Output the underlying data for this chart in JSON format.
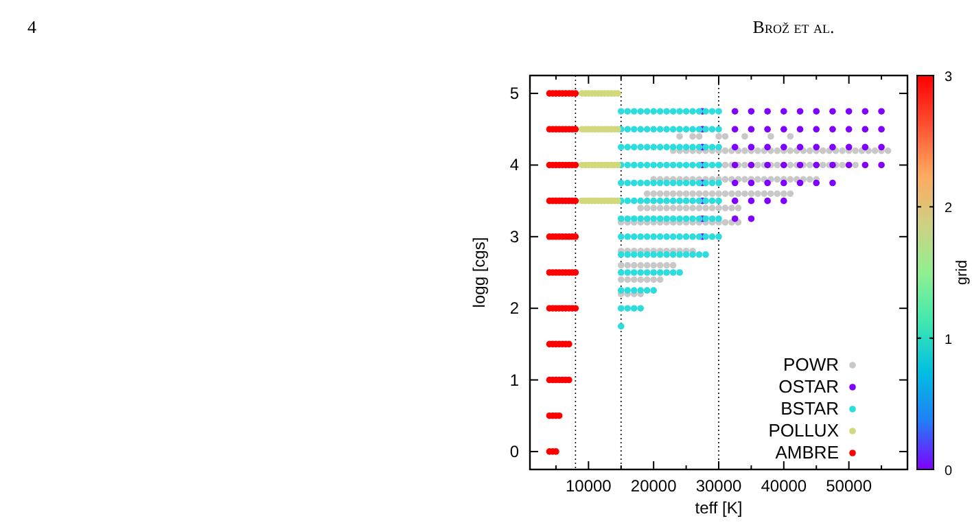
{
  "chart_data": {
    "type": "scatter",
    "xlabel": "teff [K]",
    "ylabel": "logg [cgs]",
    "clabel": "grid",
    "clim": [
      0,
      3
    ],
    "cticks": [
      0,
      1,
      2,
      3
    ],
    "annotations": [
      "4",
      "Brož et al."
    ],
    "xlim": [
      1000,
      59000
    ],
    "ylim": [
      -0.25,
      5.25
    ],
    "xticks": [
      {
        "value": 5000,
        "label": null
      },
      10000,
      {
        "value": 15000,
        "label": null
      },
      20000,
      {
        "value": 25000,
        "label": null
      },
      30000,
      {
        "value": 35000,
        "label": null
      },
      40000,
      {
        "value": 45000,
        "label": null
      },
      50000,
      {
        "value": 55000,
        "label": null
      }
    ],
    "yticks": [
      0,
      1,
      2,
      3,
      4,
      5
    ],
    "grid": false,
    "legend": "bottom right",
    "marker": "circle",
    "ref_lines": [
      {
        "axis": "x",
        "value": 8000,
        "line_style": "dotted",
        "color": "#000000"
      },
      {
        "axis": "x",
        "value": 15000,
        "line_style": "dotted",
        "color": "#000000"
      },
      {
        "axis": "x",
        "value": 30000,
        "line_style": "dotted",
        "color": "#000000"
      }
    ],
    "series": [
      {
        "name": "POWR",
        "color": "#c8c8c8",
        "x": [
          24000,
          26000,
          27000,
          30000,
          31000,
          34000,
          38000,
          41000,
          23000,
          24000,
          25000,
          26000,
          27000,
          28000,
          29000,
          30000,
          31000,
          32000,
          33000,
          34000,
          35000,
          36000,
          37000,
          38000,
          39000,
          40000,
          41000,
          42000,
          43000,
          44000,
          45000,
          46000,
          47000,
          48000,
          49000,
          50000,
          51000,
          52000,
          53000,
          54000,
          55000,
          56000,
          30000,
          31000,
          32000,
          33000,
          34000,
          35000,
          36000,
          37000,
          38000,
          39000,
          40000,
          41000,
          42000,
          43000,
          44000,
          45000,
          46000,
          47000,
          48000,
          49000,
          50000,
          51000,
          20000,
          21000,
          22000,
          23000,
          24000,
          25000,
          26000,
          27000,
          28000,
          29000,
          30000,
          31000,
          32000,
          33000,
          34000,
          35000,
          36000,
          37000,
          38000,
          39000,
          40000,
          41000,
          42000,
          43000,
          44000,
          45000,
          19000,
          20000,
          21000,
          22000,
          23000,
          24000,
          25000,
          26000,
          27000,
          28000,
          29000,
          30000,
          31000,
          32000,
          33000,
          34000,
          35000,
          36000,
          37000,
          38000,
          39000,
          40000,
          41000,
          18000,
          19000,
          20000,
          21000,
          22000,
          23000,
          24000,
          25000,
          26000,
          27000,
          28000,
          29000,
          30000,
          31000,
          32000,
          33000,
          15000,
          16000,
          17000,
          18000,
          19000,
          20000,
          21000,
          22000,
          23000,
          24000,
          25000,
          26000,
          27000,
          28000,
          29000,
          30000,
          31000,
          32000,
          33000,
          15000,
          16000,
          17000,
          18000,
          19000,
          20000,
          21000,
          22000,
          23000,
          24000,
          25000,
          26000,
          15000,
          16000,
          17000,
          18000,
          19000,
          20000,
          21000,
          22000,
          23000,
          15000,
          16000,
          17000,
          18000,
          19000,
          20000,
          21000,
          15000,
          16000,
          17000,
          18000
        ],
        "values": [
          4.4,
          4.4,
          4.4,
          4.4,
          4.4,
          4.4,
          4.4,
          4.4,
          4.2,
          4.2,
          4.2,
          4.2,
          4.2,
          4.2,
          4.2,
          4.2,
          4.2,
          4.2,
          4.2,
          4.2,
          4.2,
          4.2,
          4.2,
          4.2,
          4.2,
          4.2,
          4.2,
          4.2,
          4.2,
          4.2,
          4.2,
          4.2,
          4.2,
          4.2,
          4.2,
          4.2,
          4.2,
          4.2,
          4.2,
          4.2,
          4.2,
          4.2,
          4,
          4,
          4,
          4,
          4,
          4,
          4,
          4,
          4,
          4,
          4,
          4,
          4,
          4,
          4,
          4,
          4,
          4,
          4,
          4,
          4,
          4,
          3.8,
          3.8,
          3.8,
          3.8,
          3.8,
          3.8,
          3.8,
          3.8,
          3.8,
          3.8,
          3.8,
          3.8,
          3.8,
          3.8,
          3.8,
          3.8,
          3.8,
          3.8,
          3.8,
          3.8,
          3.8,
          3.8,
          3.8,
          3.8,
          3.8,
          3.8,
          3.6,
          3.6,
          3.6,
          3.6,
          3.6,
          3.6,
          3.6,
          3.6,
          3.6,
          3.6,
          3.6,
          3.6,
          3.6,
          3.6,
          3.6,
          3.6,
          3.6,
          3.6,
          3.6,
          3.6,
          3.6,
          3.6,
          3.6,
          3.4,
          3.4,
          3.4,
          3.4,
          3.4,
          3.4,
          3.4,
          3.4,
          3.4,
          3.4,
          3.4,
          3.4,
          3.4,
          3.4,
          3.4,
          3.4,
          3.2,
          3.2,
          3.2,
          3.2,
          3.2,
          3.2,
          3.2,
          3.2,
          3.2,
          3.2,
          3.2,
          3.2,
          3.2,
          3.2,
          3.2,
          3.2,
          3.2,
          3.2,
          3.2,
          2.8,
          2.8,
          2.8,
          2.8,
          2.8,
          2.8,
          2.8,
          2.8,
          2.8,
          2.8,
          2.8,
          2.8,
          2.6,
          2.6,
          2.6,
          2.6,
          2.6,
          2.6,
          2.6,
          2.6,
          2.6,
          2.4,
          2.4,
          2.4,
          2.4,
          2.4,
          2.4,
          2.4,
          2.2,
          2.2,
          2.2,
          2.2
        ]
      },
      {
        "name": "OSTAR",
        "color": "#8000ff",
        "x": [
          27500,
          32500,
          35000,
          37500,
          40000,
          42500,
          45000,
          47500,
          50000,
          52500,
          55000,
          27500,
          32500,
          35000,
          37500,
          40000,
          42500,
          45000,
          47500,
          50000,
          52500,
          55000,
          27500,
          32500,
          35000,
          37500,
          40000,
          42500,
          45000,
          47500,
          50000,
          52500,
          55000,
          27500,
          32500,
          35000,
          37500,
          40000,
          42500,
          45000,
          47500,
          50000,
          52500,
          55000,
          27500,
          32500,
          35000,
          37500,
          40000,
          42500,
          45000,
          47500,
          27500,
          32500,
          35000,
          37500,
          40000,
          27500,
          32500,
          35000,
          27500
        ],
        "values": [
          4.75,
          4.75,
          4.75,
          4.75,
          4.75,
          4.75,
          4.75,
          4.75,
          4.75,
          4.75,
          4.75,
          4.5,
          4.5,
          4.5,
          4.5,
          4.5,
          4.5,
          4.5,
          4.5,
          4.5,
          4.5,
          4.5,
          4.25,
          4.25,
          4.25,
          4.25,
          4.25,
          4.25,
          4.25,
          4.25,
          4.25,
          4.25,
          4.25,
          4,
          4,
          4,
          4,
          4,
          4,
          4,
          4,
          4,
          4,
          4,
          3.75,
          3.75,
          3.75,
          3.75,
          3.75,
          3.75,
          3.75,
          3.75,
          3.5,
          3.5,
          3.5,
          3.5,
          3.5,
          3.25,
          3.25,
          3.25,
          3
        ]
      },
      {
        "name": "BSTAR",
        "color": "#2ddcdc",
        "x": [
          15000,
          16000,
          17000,
          18000,
          19000,
          20000,
          21000,
          22000,
          23000,
          24000,
          25000,
          26000,
          27000,
          28000,
          29000,
          30000,
          15000,
          16000,
          17000,
          18000,
          19000,
          20000,
          21000,
          22000,
          23000,
          24000,
          25000,
          26000,
          27000,
          28000,
          29000,
          30000,
          15000,
          16000,
          17000,
          18000,
          19000,
          20000,
          21000,
          22000,
          23000,
          24000,
          25000,
          26000,
          27000,
          28000,
          29000,
          30000,
          15000,
          16000,
          17000,
          18000,
          19000,
          20000,
          21000,
          22000,
          23000,
          24000,
          25000,
          26000,
          27000,
          28000,
          29000,
          30000,
          15000,
          16000,
          17000,
          18000,
          19000,
          20000,
          21000,
          22000,
          23000,
          24000,
          25000,
          26000,
          27000,
          28000,
          29000,
          30000,
          15000,
          16000,
          17000,
          18000,
          19000,
          20000,
          21000,
          22000,
          23000,
          24000,
          25000,
          26000,
          27000,
          28000,
          29000,
          30000,
          15000,
          16000,
          17000,
          18000,
          19000,
          20000,
          21000,
          22000,
          23000,
          24000,
          25000,
          26000,
          27000,
          28000,
          29000,
          30000,
          15000,
          16000,
          17000,
          18000,
          19000,
          20000,
          21000,
          22000,
          23000,
          24000,
          25000,
          26000,
          27000,
          28000,
          29000,
          30000,
          15000,
          16000,
          17000,
          18000,
          19000,
          20000,
          21000,
          22000,
          23000,
          24000,
          25000,
          26000,
          27000,
          28000,
          15000,
          16000,
          17000,
          18000,
          19000,
          20000,
          21000,
          22000,
          23000,
          24000,
          15000,
          16000,
          17000,
          18000,
          19000,
          20000,
          15000,
          16000,
          17000,
          18000,
          15000
        ],
        "values": [
          4.75,
          4.75,
          4.75,
          4.75,
          4.75,
          4.75,
          4.75,
          4.75,
          4.75,
          4.75,
          4.75,
          4.75,
          4.75,
          4.75,
          4.75,
          4.75,
          4.5,
          4.5,
          4.5,
          4.5,
          4.5,
          4.5,
          4.5,
          4.5,
          4.5,
          4.5,
          4.5,
          4.5,
          4.5,
          4.5,
          4.5,
          4.5,
          4.25,
          4.25,
          4.25,
          4.25,
          4.25,
          4.25,
          4.25,
          4.25,
          4.25,
          4.25,
          4.25,
          4.25,
          4.25,
          4.25,
          4.25,
          4.25,
          4,
          4,
          4,
          4,
          4,
          4,
          4,
          4,
          4,
          4,
          4,
          4,
          4,
          4,
          4,
          4,
          3.75,
          3.75,
          3.75,
          3.75,
          3.75,
          3.75,
          3.75,
          3.75,
          3.75,
          3.75,
          3.75,
          3.75,
          3.75,
          3.75,
          3.75,
          3.75,
          3.5,
          3.5,
          3.5,
          3.5,
          3.5,
          3.5,
          3.5,
          3.5,
          3.5,
          3.5,
          3.5,
          3.5,
          3.5,
          3.5,
          3.5,
          3.5,
          3.25,
          3.25,
          3.25,
          3.25,
          3.25,
          3.25,
          3.25,
          3.25,
          3.25,
          3.25,
          3.25,
          3.25,
          3.25,
          3.25,
          3.25,
          3.25,
          3,
          3,
          3,
          3,
          3,
          3,
          3,
          3,
          3,
          3,
          3,
          3,
          3,
          3,
          3,
          3,
          2.75,
          2.75,
          2.75,
          2.75,
          2.75,
          2.75,
          2.75,
          2.75,
          2.75,
          2.75,
          2.75,
          2.75,
          2.75,
          2.75,
          2.5,
          2.5,
          2.5,
          2.5,
          2.5,
          2.5,
          2.5,
          2.5,
          2.5,
          2.5,
          2.25,
          2.25,
          2.25,
          2.25,
          2.25,
          2.25,
          2,
          2,
          2,
          2,
          1.75
        ]
      },
      {
        "name": "POLLUX",
        "color": "#d2d87c",
        "x": [
          9000,
          9500,
          10000,
          10500,
          11000,
          11500,
          12000,
          12500,
          13000,
          13500,
          14000,
          14500,
          9000,
          9500,
          10000,
          10500,
          11000,
          11500,
          12000,
          12500,
          13000,
          13500,
          14000,
          14500,
          9000,
          9500,
          10000,
          10500,
          11000,
          11500,
          12000,
          12500,
          13000,
          13500,
          14000,
          14500,
          9000,
          9500,
          10000,
          10500,
          11000,
          11500,
          12000,
          12500,
          13000,
          13500,
          14000,
          14500
        ],
        "values": [
          5,
          5,
          5,
          5,
          5,
          5,
          5,
          5,
          5,
          5,
          5,
          5,
          4.5,
          4.5,
          4.5,
          4.5,
          4.5,
          4.5,
          4.5,
          4.5,
          4.5,
          4.5,
          4.5,
          4.5,
          4,
          4,
          4,
          4,
          4,
          4,
          4,
          4,
          4,
          4,
          4,
          4,
          3.5,
          3.5,
          3.5,
          3.5,
          3.5,
          3.5,
          3.5,
          3.5,
          3.5,
          3.5,
          3.5,
          3.5
        ]
      },
      {
        "name": "AMBRE",
        "color": "#ff0000",
        "x": [
          4000,
          4500,
          5000,
          5500,
          6000,
          6500,
          7000,
          7500,
          8000,
          4000,
          4500,
          5000,
          5500,
          6000,
          6500,
          7000,
          7500,
          8000,
          4000,
          4500,
          5000,
          5500,
          6000,
          6500,
          7000,
          7500,
          8000,
          4000,
          4500,
          5000,
          5500,
          6000,
          6500,
          7000,
          7500,
          8000,
          4000,
          4500,
          5000,
          5500,
          6000,
          6500,
          7000,
          7500,
          8000,
          4000,
          4500,
          5000,
          5500,
          6000,
          6500,
          7000,
          7500,
          8000,
          4000,
          4500,
          5000,
          5500,
          6000,
          6500,
          7000,
          7500,
          8000,
          4000,
          4500,
          5000,
          5500,
          6000,
          6500,
          7000,
          4000,
          4500,
          5000,
          5500,
          6000,
          6500,
          7000,
          4000,
          4500,
          5000,
          5500,
          4000,
          4500,
          5000
        ],
        "values": [
          5,
          5,
          5,
          5,
          5,
          5,
          5,
          5,
          5,
          4.5,
          4.5,
          4.5,
          4.5,
          4.5,
          4.5,
          4.5,
          4.5,
          4.5,
          4,
          4,
          4,
          4,
          4,
          4,
          4,
          4,
          4,
          3.5,
          3.5,
          3.5,
          3.5,
          3.5,
          3.5,
          3.5,
          3.5,
          3.5,
          3,
          3,
          3,
          3,
          3,
          3,
          3,
          3,
          3,
          2.5,
          2.5,
          2.5,
          2.5,
          2.5,
          2.5,
          2.5,
          2.5,
          2.5,
          2,
          2,
          2,
          2,
          2,
          2,
          2,
          2,
          2,
          1.5,
          1.5,
          1.5,
          1.5,
          1.5,
          1.5,
          1.5,
          1,
          1,
          1,
          1,
          1,
          1,
          1,
          0.5,
          0.5,
          0.5,
          0.5,
          0,
          0,
          0
        ]
      }
    ]
  }
}
